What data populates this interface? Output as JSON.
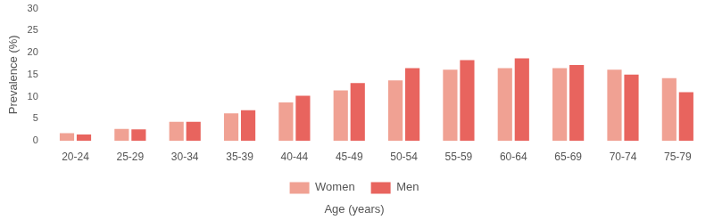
{
  "chart_data": {
    "type": "bar",
    "x_label": "Age (years)",
    "y_label": "Prevalence (%)",
    "categories": [
      "20-24",
      "25-29",
      "30-34",
      "35-39",
      "40-44",
      "45-49",
      "50-54",
      "55-59",
      "60-64",
      "65-69",
      "70-74",
      "75-79"
    ],
    "series": [
      {
        "name": "Women",
        "color": "#f0a193",
        "values": [
          1.7,
          2.7,
          4.3,
          6.2,
          8.7,
          11.4,
          13.7,
          16.1,
          16.5,
          16.5,
          16.1,
          14.2
        ]
      },
      {
        "name": "Men",
        "color": "#e8645e",
        "values": [
          1.4,
          2.6,
          4.3,
          6.9,
          10.2,
          13.1,
          16.5,
          18.3,
          18.7,
          17.2,
          15.0,
          11.0
        ]
      }
    ],
    "ylim": [
      0,
      30
    ],
    "yticks": [
      0,
      5,
      10,
      15,
      20,
      25,
      30
    ],
    "grid": false,
    "legend": "bottom"
  }
}
